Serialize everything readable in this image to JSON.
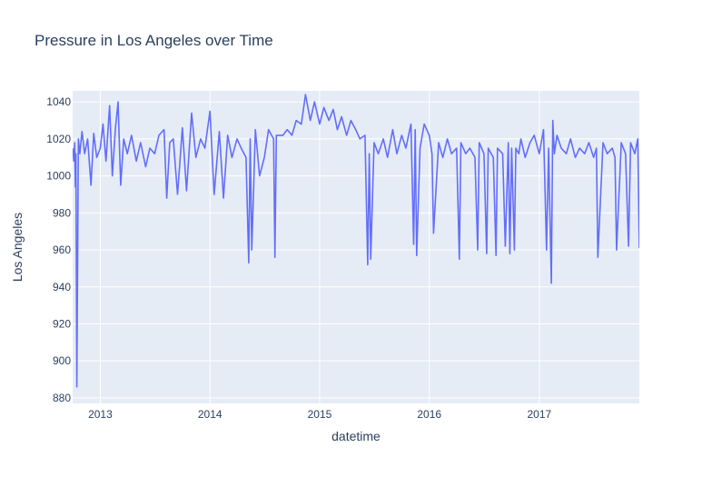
{
  "chart_data": {
    "type": "line",
    "title": "Pressure in Los Angeles over Time",
    "xlabel": "datetime",
    "ylabel": "Los Angeles",
    "grid": true,
    "legend": "none",
    "xlim": [
      "2012-10-01",
      "2017-11-30"
    ],
    "ylim": [
      877,
      1046
    ],
    "xticks": [
      "2013",
      "2014",
      "2015",
      "2016",
      "2017"
    ],
    "yticks": [
      880,
      900,
      920,
      940,
      960,
      980,
      1000,
      1020,
      1040
    ],
    "colors": {
      "line": "#636efa",
      "plot_bg": "#e5ecf6",
      "grid": "#ffffff",
      "text": "#2a3f5f"
    },
    "series": [
      {
        "x": [
          "2012-10-01",
          "2012-10-05",
          "2012-10-08",
          "2012-10-10",
          "2012-10-12",
          "2012-10-15",
          "2012-10-20",
          "2012-10-25",
          "2012-11-01",
          "2012-11-10",
          "2012-11-20",
          "2012-12-01",
          "2012-12-10",
          "2012-12-20",
          "2013-01-01",
          "2013-01-10",
          "2013-01-20",
          "2013-02-01",
          "2013-02-10",
          "2013-02-20",
          "2013-03-01",
          "2013-03-10",
          "2013-03-20",
          "2013-04-01",
          "2013-04-15",
          "2013-05-01",
          "2013-05-15",
          "2013-06-01",
          "2013-06-15",
          "2013-07-01",
          "2013-07-15",
          "2013-08-01",
          "2013-08-10",
          "2013-08-20",
          "2013-09-01",
          "2013-09-15",
          "2013-10-01",
          "2013-10-15",
          "2013-11-01",
          "2013-11-15",
          "2013-12-01",
          "2013-12-15",
          "2014-01-01",
          "2014-01-15",
          "2014-02-01",
          "2014-02-15",
          "2014-03-01",
          "2014-03-15",
          "2014-04-01",
          "2014-04-15",
          "2014-05-01",
          "2014-05-10",
          "2014-05-15",
          "2014-05-20",
          "2014-06-01",
          "2014-06-15",
          "2014-07-01",
          "2014-07-15",
          "2014-08-01",
          "2014-08-05",
          "2014-08-10",
          "2014-09-01",
          "2014-09-15",
          "2014-10-01",
          "2014-10-15",
          "2014-11-01",
          "2014-11-15",
          "2014-12-01",
          "2014-12-15",
          "2015-01-01",
          "2015-01-15",
          "2015-02-01",
          "2015-02-15",
          "2015-03-01",
          "2015-03-15",
          "2015-04-01",
          "2015-04-15",
          "2015-05-01",
          "2015-05-15",
          "2015-06-01",
          "2015-06-10",
          "2015-06-15",
          "2015-06-20",
          "2015-07-01",
          "2015-07-15",
          "2015-08-01",
          "2015-08-15",
          "2015-09-01",
          "2015-09-15",
          "2015-10-01",
          "2015-10-15",
          "2015-11-01",
          "2015-11-10",
          "2015-11-15",
          "2015-11-20",
          "2015-12-01",
          "2015-12-15",
          "2016-01-01",
          "2016-01-10",
          "2016-01-15",
          "2016-02-01",
          "2016-02-15",
          "2016-03-01",
          "2016-03-15",
          "2016-04-01",
          "2016-04-10",
          "2016-04-15",
          "2016-05-01",
          "2016-05-15",
          "2016-06-01",
          "2016-06-10",
          "2016-06-15",
          "2016-07-01",
          "2016-07-10",
          "2016-07-15",
          "2016-08-01",
          "2016-08-10",
          "2016-08-15",
          "2016-09-01",
          "2016-09-10",
          "2016-09-20",
          "2016-09-25",
          "2016-10-01",
          "2016-10-10",
          "2016-10-15",
          "2016-10-25",
          "2016-11-01",
          "2016-11-15",
          "2016-12-01",
          "2016-12-15",
          "2017-01-01",
          "2017-01-15",
          "2017-01-25",
          "2017-02-01",
          "2017-02-10",
          "2017-02-15",
          "2017-02-20",
          "2017-03-01",
          "2017-03-15",
          "2017-04-01",
          "2017-04-15",
          "2017-05-01",
          "2017-05-15",
          "2017-06-01",
          "2017-06-15",
          "2017-07-01",
          "2017-07-10",
          "2017-07-15",
          "2017-08-01",
          "2017-08-15",
          "2017-09-01",
          "2017-09-10",
          "2017-09-15",
          "2017-10-01",
          "2017-10-15",
          "2017-10-25",
          "2017-11-01",
          "2017-11-15",
          "2017-11-25",
          "2017-11-30"
        ],
        "y": [
          1015,
          1008,
          1018,
          994,
          1012,
          886,
          1020,
          1012,
          1024,
          1012,
          1020,
          995,
          1023,
          1010,
          1015,
          1028,
          1008,
          1038,
          1000,
          1025,
          1040,
          995,
          1020,
          1012,
          1022,
          1008,
          1018,
          1005,
          1015,
          1012,
          1022,
          1025,
          988,
          1018,
          1020,
          990,
          1026,
          992,
          1034,
          1010,
          1020,
          1015,
          1035,
          990,
          1024,
          988,
          1022,
          1010,
          1020,
          1015,
          1010,
          953,
          1020,
          960,
          1025,
          1000,
          1010,
          1025,
          1020,
          956,
          1022,
          1022,
          1025,
          1022,
          1030,
          1028,
          1044,
          1030,
          1040,
          1028,
          1037,
          1030,
          1036,
          1025,
          1032,
          1022,
          1030,
          1025,
          1020,
          1022,
          952,
          1012,
          955,
          1018,
          1012,
          1020,
          1010,
          1025,
          1012,
          1022,
          1015,
          1028,
          963,
          1025,
          957,
          1015,
          1028,
          1022,
          1012,
          969,
          1018,
          1010,
          1020,
          1012,
          1015,
          955,
          1018,
          1012,
          1015,
          1010,
          960,
          1018,
          1012,
          958,
          1015,
          1010,
          957,
          1015,
          1012,
          962,
          1018,
          958,
          1015,
          960,
          1015,
          1012,
          1020,
          1010,
          1018,
          1022,
          1012,
          1025,
          960,
          1015,
          942,
          1030,
          1012,
          1022,
          1015,
          1012,
          1020,
          1010,
          1015,
          1012,
          1018,
          1010,
          1015,
          956,
          1018,
          1012,
          1015,
          1010,
          960,
          1018,
          1012,
          962,
          1018,
          1012,
          1020,
          961
        ]
      }
    ]
  }
}
